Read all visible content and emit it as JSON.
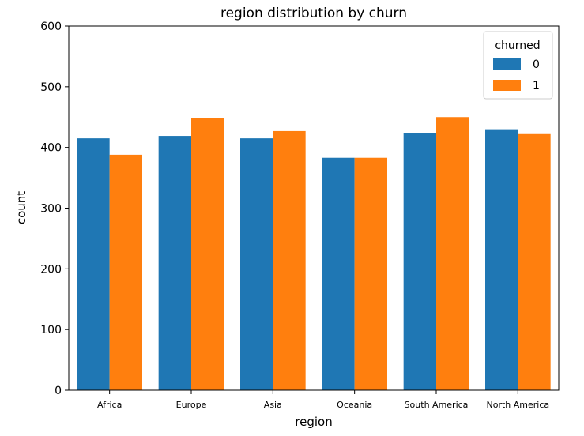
{
  "chart_data": {
    "type": "bar",
    "title": "region distribution by churn",
    "xlabel": "region",
    "ylabel": "count",
    "ylim": [
      0,
      600
    ],
    "yticks": [
      0,
      100,
      200,
      300,
      400,
      500,
      600
    ],
    "categories": [
      "Africa",
      "Europe",
      "Asia",
      "Oceania",
      "South America",
      "North America"
    ],
    "series": [
      {
        "name": "0",
        "color": "#1f77b4",
        "values": [
          415,
          419,
          415,
          383,
          424,
          430
        ]
      },
      {
        "name": "1",
        "color": "#ff7f0e",
        "values": [
          388,
          448,
          427,
          383,
          450,
          422
        ]
      }
    ],
    "legend": {
      "title": "churned",
      "placement": "top-right"
    },
    "grid": false
  }
}
